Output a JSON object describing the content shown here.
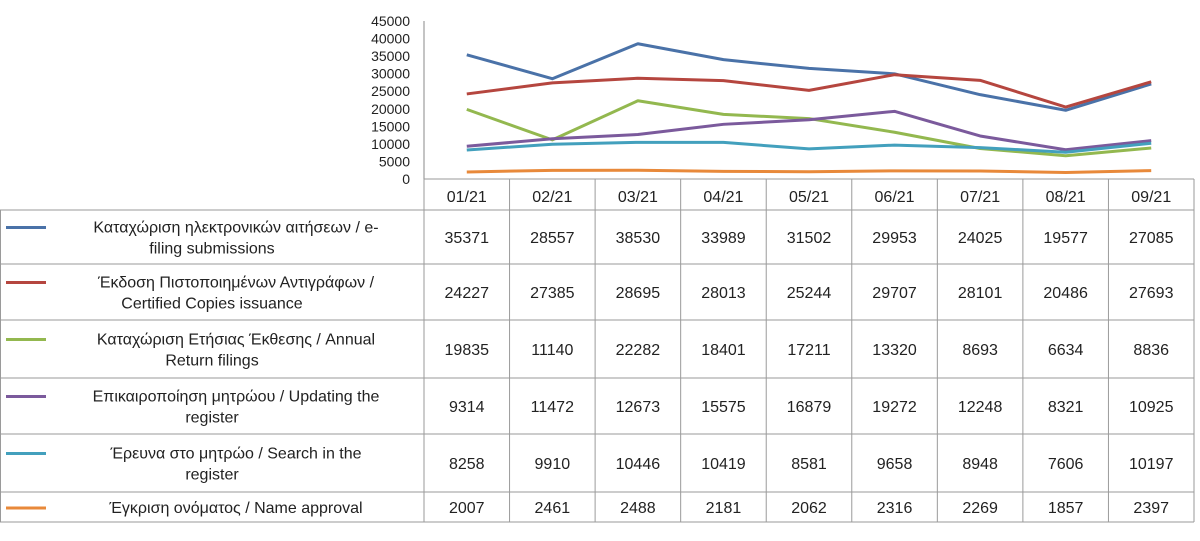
{
  "chart_data": {
    "type": "line",
    "categories": [
      "01/21",
      "02/21",
      "03/21",
      "04/21",
      "05/21",
      "06/21",
      "07/21",
      "08/21",
      "09/21"
    ],
    "ylim": [
      0,
      45000
    ],
    "yticks": [
      0,
      5000,
      10000,
      15000,
      20000,
      25000,
      30000,
      35000,
      40000,
      45000
    ],
    "grid": false,
    "legend": "table-rows",
    "series": [
      {
        "name_lines": [
          "Καταχώριση ηλεκτρονικών αιτήσεων / e-",
          "filing submissions"
        ],
        "color": "#4a72a8",
        "values": [
          35371,
          28557,
          38530,
          33989,
          31502,
          29953,
          24025,
          19577,
          27085
        ]
      },
      {
        "name_lines": [
          "Έκδοση Πιστοποιημένων Αντιγράφων /",
          "Certified Copies issuance"
        ],
        "color": "#b5463f",
        "values": [
          24227,
          27385,
          28695,
          28013,
          25244,
          29707,
          28101,
          20486,
          27693
        ]
      },
      {
        "name_lines": [
          "Καταχώριση Ετήσιας Έκθεσης / Annual",
          "Return filings"
        ],
        "color": "#93b84f",
        "values": [
          19835,
          11140,
          22282,
          18401,
          17211,
          13320,
          8693,
          6634,
          8836
        ]
      },
      {
        "name_lines": [
          "Επικαιροποίηση μητρώου / Updating the",
          "register"
        ],
        "color": "#7b5a9c",
        "values": [
          9314,
          11472,
          12673,
          15575,
          16879,
          19272,
          12248,
          8321,
          10925
        ]
      },
      {
        "name_lines": [
          "Έρευνα στο μητρώο / Search in the",
          "register"
        ],
        "color": "#43a0bd",
        "values": [
          8258,
          9910,
          10446,
          10419,
          8581,
          9658,
          8948,
          7606,
          10197
        ]
      },
      {
        "name_lines": [
          "Έγκριση ονόματος / Name approval"
        ],
        "color": "#e8893a",
        "values": [
          2007,
          2461,
          2488,
          2181,
          2062,
          2316,
          2269,
          1857,
          2397
        ]
      }
    ]
  }
}
